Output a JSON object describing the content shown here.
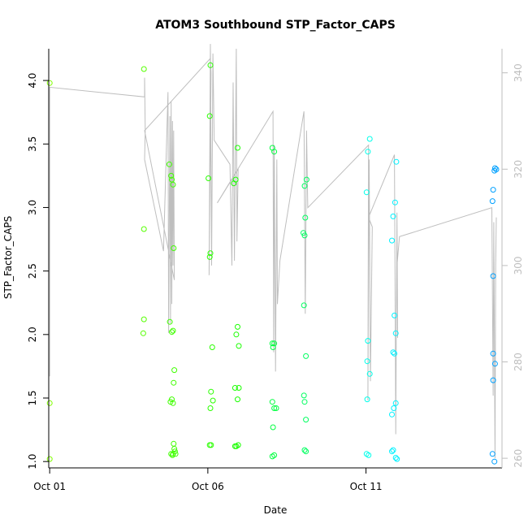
{
  "chart_data": {
    "type": "scatter",
    "title": "ATOM3 Southbound STP_Factor_CAPS",
    "xlabel": "Date",
    "ylabel": "STP_Factor_CAPS",
    "x_ticks": [
      "Oct 01",
      "Oct 06",
      "Oct 11"
    ],
    "x_tick_days": [
      1,
      6,
      11
    ],
    "xlim_days": [
      0.97,
      15.3
    ],
    "ylim": [
      0.95,
      4.25
    ],
    "y_ticks": [
      "1.0",
      "1.5",
      "2.0",
      "2.5",
      "3.0",
      "3.5",
      "4.0"
    ],
    "y_tick_values": [
      1.0,
      1.5,
      2.0,
      2.5,
      3.0,
      3.5,
      4.0
    ],
    "y2lim": [
      258,
      345
    ],
    "y2_ticks": [
      "260",
      "280",
      "300",
      "320",
      "340"
    ],
    "y2_tick_values": [
      260,
      280,
      300,
      320,
      340
    ],
    "y2_color": "#bebebe",
    "point_style": "open circle, color gradient green to blue by date",
    "points": [
      {
        "day": 1.0,
        "y": 3.98,
        "c": "#80ff00"
      },
      {
        "day": 1.0,
        "y": 1.46,
        "c": "#80ff00"
      },
      {
        "day": 1.0,
        "y": 1.02,
        "c": "#80ff00"
      },
      {
        "day": 3.98,
        "y": 4.09,
        "c": "#55ff00"
      },
      {
        "day": 3.98,
        "y": 2.83,
        "c": "#55ff00"
      },
      {
        "day": 3.98,
        "y": 2.12,
        "c": "#55ff00"
      },
      {
        "day": 3.96,
        "y": 2.01,
        "c": "#55ff00"
      },
      {
        "day": 4.78,
        "y": 3.34,
        "c": "#40ff00"
      },
      {
        "day": 4.84,
        "y": 3.25,
        "c": "#40ff00"
      },
      {
        "day": 4.86,
        "y": 3.22,
        "c": "#40ff00"
      },
      {
        "day": 4.9,
        "y": 3.18,
        "c": "#40ff00"
      },
      {
        "day": 4.92,
        "y": 2.68,
        "c": "#40ff00"
      },
      {
        "day": 4.8,
        "y": 2.1,
        "c": "#40ff00"
      },
      {
        "day": 4.86,
        "y": 2.02,
        "c": "#40ff00"
      },
      {
        "day": 4.9,
        "y": 2.03,
        "c": "#40ff00"
      },
      {
        "day": 4.94,
        "y": 1.72,
        "c": "#40ff00"
      },
      {
        "day": 4.92,
        "y": 1.62,
        "c": "#40ff00"
      },
      {
        "day": 4.82,
        "y": 1.47,
        "c": "#40ff00"
      },
      {
        "day": 4.86,
        "y": 1.49,
        "c": "#40ff00"
      },
      {
        "day": 4.9,
        "y": 1.46,
        "c": "#40ff00"
      },
      {
        "day": 4.92,
        "y": 1.14,
        "c": "#40ff00"
      },
      {
        "day": 4.94,
        "y": 1.1,
        "c": "#40ff00"
      },
      {
        "day": 4.84,
        "y": 1.06,
        "c": "#40ff00"
      },
      {
        "day": 4.88,
        "y": 1.05,
        "c": "#40ff00"
      },
      {
        "day": 4.9,
        "y": 1.06,
        "c": "#40ff00"
      },
      {
        "day": 4.96,
        "y": 1.08,
        "c": "#40ff00"
      },
      {
        "day": 4.98,
        "y": 1.06,
        "c": "#40ff00"
      },
      {
        "day": 6.08,
        "y": 4.12,
        "c": "#2aff00"
      },
      {
        "day": 6.06,
        "y": 3.72,
        "c": "#2aff00"
      },
      {
        "day": 6.02,
        "y": 3.23,
        "c": "#2aff00"
      },
      {
        "day": 6.08,
        "y": 2.64,
        "c": "#2aff00"
      },
      {
        "day": 6.06,
        "y": 2.61,
        "c": "#2aff00"
      },
      {
        "day": 6.14,
        "y": 1.9,
        "c": "#2aff00"
      },
      {
        "day": 6.1,
        "y": 1.55,
        "c": "#2aff00"
      },
      {
        "day": 6.16,
        "y": 1.48,
        "c": "#2aff00"
      },
      {
        "day": 6.08,
        "y": 1.42,
        "c": "#2aff00"
      },
      {
        "day": 6.06,
        "y": 1.13,
        "c": "#2aff00"
      },
      {
        "day": 6.1,
        "y": 1.13,
        "c": "#2aff00"
      },
      {
        "day": 6.94,
        "y": 3.47,
        "c": "#1aff00"
      },
      {
        "day": 6.88,
        "y": 3.22,
        "c": "#1aff00"
      },
      {
        "day": 6.82,
        "y": 3.19,
        "c": "#1aff00"
      },
      {
        "day": 6.94,
        "y": 2.06,
        "c": "#1aff00"
      },
      {
        "day": 6.9,
        "y": 2.0,
        "c": "#1aff00"
      },
      {
        "day": 6.98,
        "y": 1.91,
        "c": "#1aff00"
      },
      {
        "day": 6.86,
        "y": 1.58,
        "c": "#1aff00"
      },
      {
        "day": 6.98,
        "y": 1.58,
        "c": "#1aff00"
      },
      {
        "day": 6.94,
        "y": 1.49,
        "c": "#1aff00"
      },
      {
        "day": 6.86,
        "y": 1.12,
        "c": "#1aff00"
      },
      {
        "day": 6.9,
        "y": 1.12,
        "c": "#1aff00"
      },
      {
        "day": 6.96,
        "y": 1.13,
        "c": "#1aff00"
      },
      {
        "day": 8.04,
        "y": 3.47,
        "c": "#00ff40"
      },
      {
        "day": 8.1,
        "y": 3.44,
        "c": "#00ff40"
      },
      {
        "day": 8.04,
        "y": 1.93,
        "c": "#00ff40"
      },
      {
        "day": 8.1,
        "y": 1.93,
        "c": "#00ff40"
      },
      {
        "day": 8.06,
        "y": 1.9,
        "c": "#00ff40"
      },
      {
        "day": 8.04,
        "y": 1.47,
        "c": "#00ff40"
      },
      {
        "day": 8.1,
        "y": 1.42,
        "c": "#00ff40"
      },
      {
        "day": 8.16,
        "y": 1.42,
        "c": "#00ff40"
      },
      {
        "day": 8.06,
        "y": 1.27,
        "c": "#00ff40"
      },
      {
        "day": 8.04,
        "y": 1.04,
        "c": "#00ff40"
      },
      {
        "day": 8.1,
        "y": 1.05,
        "c": "#00ff40"
      },
      {
        "day": 9.12,
        "y": 3.22,
        "c": "#00ff60"
      },
      {
        "day": 9.06,
        "y": 3.17,
        "c": "#00ff60"
      },
      {
        "day": 9.08,
        "y": 2.92,
        "c": "#00ff60"
      },
      {
        "day": 9.02,
        "y": 2.8,
        "c": "#00ff60"
      },
      {
        "day": 9.06,
        "y": 2.78,
        "c": "#00ff60"
      },
      {
        "day": 9.04,
        "y": 2.23,
        "c": "#00ff60"
      },
      {
        "day": 9.1,
        "y": 1.83,
        "c": "#00ff60"
      },
      {
        "day": 9.04,
        "y": 1.52,
        "c": "#00ff60"
      },
      {
        "day": 9.06,
        "y": 1.47,
        "c": "#00ff60"
      },
      {
        "day": 9.1,
        "y": 1.33,
        "c": "#00ff60"
      },
      {
        "day": 9.06,
        "y": 1.09,
        "c": "#00ff60"
      },
      {
        "day": 9.1,
        "y": 1.08,
        "c": "#00ff60"
      },
      {
        "day": 11.12,
        "y": 3.54,
        "c": "#00ffea"
      },
      {
        "day": 11.06,
        "y": 3.44,
        "c": "#00ffea"
      },
      {
        "day": 11.02,
        "y": 3.12,
        "c": "#00ffea"
      },
      {
        "day": 11.06,
        "y": 1.95,
        "c": "#00ffea"
      },
      {
        "day": 11.04,
        "y": 1.79,
        "c": "#00ffea"
      },
      {
        "day": 11.12,
        "y": 1.69,
        "c": "#00ffea"
      },
      {
        "day": 11.04,
        "y": 1.49,
        "c": "#00ffea"
      },
      {
        "day": 11.02,
        "y": 1.06,
        "c": "#00ffea"
      },
      {
        "day": 11.08,
        "y": 1.05,
        "c": "#00ffea"
      },
      {
        "day": 11.96,
        "y": 3.36,
        "c": "#00f2ff"
      },
      {
        "day": 11.92,
        "y": 3.04,
        "c": "#00f2ff"
      },
      {
        "day": 11.86,
        "y": 2.93,
        "c": "#00f2ff"
      },
      {
        "day": 11.82,
        "y": 2.74,
        "c": "#00f2ff"
      },
      {
        "day": 11.9,
        "y": 2.15,
        "c": "#00f2ff"
      },
      {
        "day": 11.94,
        "y": 2.01,
        "c": "#00f2ff"
      },
      {
        "day": 11.86,
        "y": 1.86,
        "c": "#00f2ff"
      },
      {
        "day": 11.9,
        "y": 1.85,
        "c": "#00f2ff"
      },
      {
        "day": 11.94,
        "y": 1.46,
        "c": "#00f2ff"
      },
      {
        "day": 11.88,
        "y": 1.42,
        "c": "#00f2ff"
      },
      {
        "day": 11.82,
        "y": 1.37,
        "c": "#00f2ff"
      },
      {
        "day": 11.82,
        "y": 1.08,
        "c": "#00f2ff"
      },
      {
        "day": 11.86,
        "y": 1.09,
        "c": "#00f2ff"
      },
      {
        "day": 11.94,
        "y": 1.03,
        "c": "#00f2ff"
      },
      {
        "day": 11.98,
        "y": 1.02,
        "c": "#00f2ff"
      },
      {
        "day": 15.08,
        "y": 3.31,
        "c": "#00a0ff"
      },
      {
        "day": 15.12,
        "y": 3.3,
        "c": "#00a0ff"
      },
      {
        "day": 15.06,
        "y": 3.29,
        "c": "#00a0ff"
      },
      {
        "day": 15.02,
        "y": 3.14,
        "c": "#00a0ff"
      },
      {
        "day": 15.0,
        "y": 3.05,
        "c": "#00a0ff"
      },
      {
        "day": 15.02,
        "y": 2.46,
        "c": "#00a0ff"
      },
      {
        "day": 15.02,
        "y": 1.85,
        "c": "#00a0ff"
      },
      {
        "day": 15.08,
        "y": 1.77,
        "c": "#00a0ff"
      },
      {
        "day": 15.02,
        "y": 1.64,
        "c": "#00a0ff"
      },
      {
        "day": 15.0,
        "y": 1.06,
        "c": "#00a0ff"
      },
      {
        "day": 15.06,
        "y": 1.0,
        "c": "#00a0ff"
      }
    ],
    "line_series": {
      "color": "#bebebe",
      "axis": "right",
      "points": [
        [
          1.0,
          277
        ],
        [
          1.0,
          337
        ],
        [
          4.0,
          335
        ],
        [
          4.0,
          339
        ],
        [
          4.02,
          328
        ],
        [
          4.0,
          322
        ],
        [
          4.6,
          303
        ],
        [
          4.74,
          336
        ],
        [
          4.76,
          286
        ],
        [
          4.8,
          331
        ],
        [
          4.82,
          288
        ],
        [
          4.84,
          334
        ],
        [
          4.86,
          292
        ],
        [
          4.88,
          330
        ],
        [
          4.9,
          300
        ],
        [
          4.92,
          328
        ],
        [
          4.94,
          297
        ],
        [
          4.0,
          328
        ],
        [
          6.08,
          343
        ],
        [
          6.1,
          340
        ],
        [
          6.04,
          298
        ],
        [
          6.08,
          346
        ],
        [
          6.12,
          300
        ],
        [
          6.16,
          344
        ],
        [
          6.2,
          326
        ],
        [
          6.7,
          321
        ],
        [
          6.76,
          300
        ],
        [
          6.8,
          338
        ],
        [
          6.84,
          301
        ],
        [
          6.9,
          345
        ],
        [
          6.92,
          305
        ],
        [
          6.96,
          320
        ],
        [
          6.3,
          313
        ],
        [
          8.06,
          332
        ],
        [
          8.08,
          282
        ],
        [
          8.1,
          325
        ],
        [
          8.14,
          278
        ],
        [
          8.18,
          322
        ],
        [
          8.2,
          292
        ],
        [
          8.28,
          301
        ],
        [
          9.04,
          332
        ],
        [
          9.08,
          290
        ],
        [
          9.12,
          328
        ],
        [
          9.16,
          312
        ],
        [
          11.08,
          325
        ],
        [
          11.06,
          272
        ],
        [
          11.1,
          322
        ],
        [
          11.14,
          276
        ],
        [
          11.2,
          308
        ],
        [
          11.08,
          310
        ],
        [
          11.9,
          323
        ],
        [
          11.94,
          265
        ],
        [
          11.98,
          311
        ],
        [
          12.0,
          285
        ],
        [
          11.98,
          300
        ],
        [
          12.06,
          306
        ],
        [
          14.98,
          312
        ],
        [
          15.02,
          273
        ],
        [
          15.04,
          309
        ],
        [
          15.08,
          260
        ],
        [
          15.1,
          300
        ],
        [
          15.12,
          310
        ]
      ]
    }
  }
}
